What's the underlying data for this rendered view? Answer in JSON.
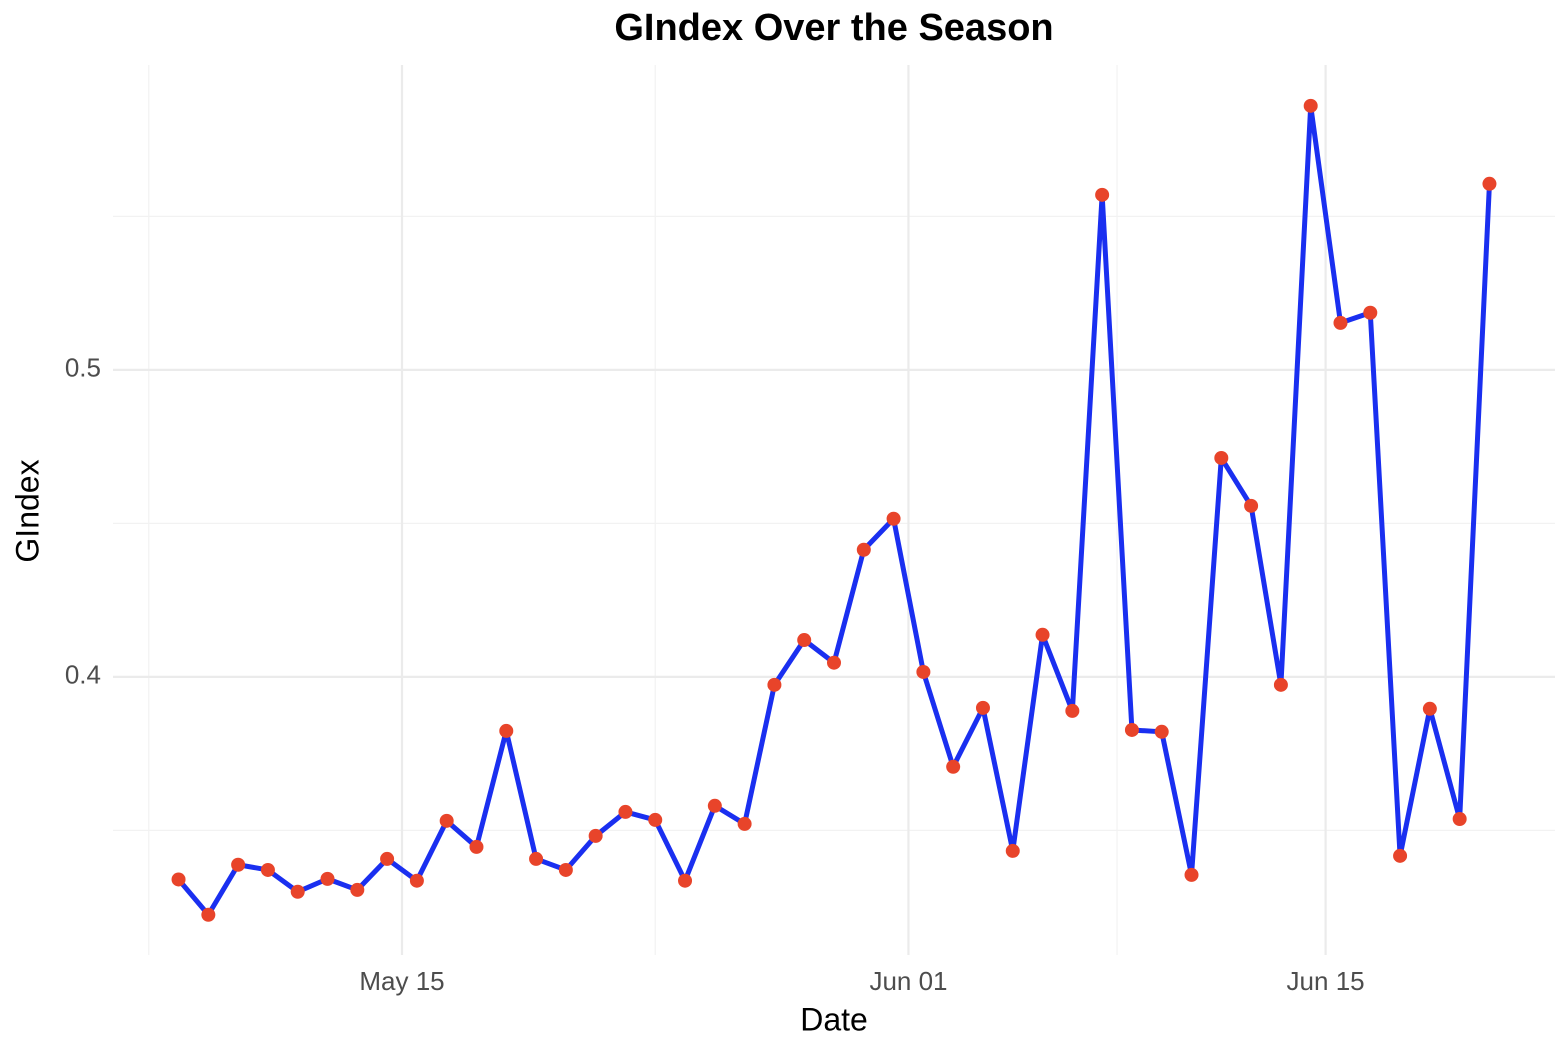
{
  "chart_data": {
    "type": "line",
    "title": "GIndex Over the Season",
    "x_label": "Date",
    "y_label": "GIndex",
    "x": [
      "May 07",
      "May 08",
      "May 09",
      "May 10",
      "May 11",
      "May 12",
      "May 13",
      "May 14",
      "May 15",
      "May 16",
      "May 17",
      "May 18",
      "May 19",
      "May 20",
      "May 21",
      "May 22",
      "May 23",
      "May 24",
      "May 25",
      "May 26",
      "May 27",
      "May 28",
      "May 29",
      "May 30",
      "May 31",
      "Jun 01",
      "Jun 02",
      "Jun 03",
      "Jun 04",
      "Jun 05",
      "Jun 06",
      "Jun 07",
      "Jun 08",
      "Jun 09",
      "Jun 10",
      "Jun 11",
      "Jun 12",
      "Jun 13",
      "Jun 14",
      "Jun 15",
      "Jun 16",
      "Jun 17",
      "Jun 18",
      "Jun 19",
      "Jun 20"
    ],
    "series": [
      {
        "name": "GIndex",
        "color": "#1a2ff0",
        "marker_color": "#e8442a",
        "values": [
          0.334,
          0.3225,
          0.3388,
          0.3371,
          0.33,
          0.3342,
          0.3306,
          0.3407,
          0.3336,
          0.3531,
          0.3446,
          0.3824,
          0.3407,
          0.3371,
          0.3482,
          0.356,
          0.3534,
          0.3336,
          0.358,
          0.3521,
          0.3974,
          0.412,
          0.4046,
          0.4414,
          0.4515,
          0.4016,
          0.3707,
          0.3899,
          0.3433,
          0.4137,
          0.3889,
          0.557,
          0.3827,
          0.3821,
          0.3355,
          0.4713,
          0.4557,
          0.3974,
          0.586,
          0.5153,
          0.5186,
          0.3417,
          0.3896,
          0.3537,
          0.5606
        ]
      }
    ],
    "xticks": [
      "May 15",
      "Jun 01",
      "Jun 15"
    ],
    "ylim": [
      0.3094,
      0.5993
    ],
    "yticks": [
      0.4,
      0.5
    ],
    "minor_yticks": [
      0.35,
      0.45,
      0.55
    ],
    "grid": true
  }
}
